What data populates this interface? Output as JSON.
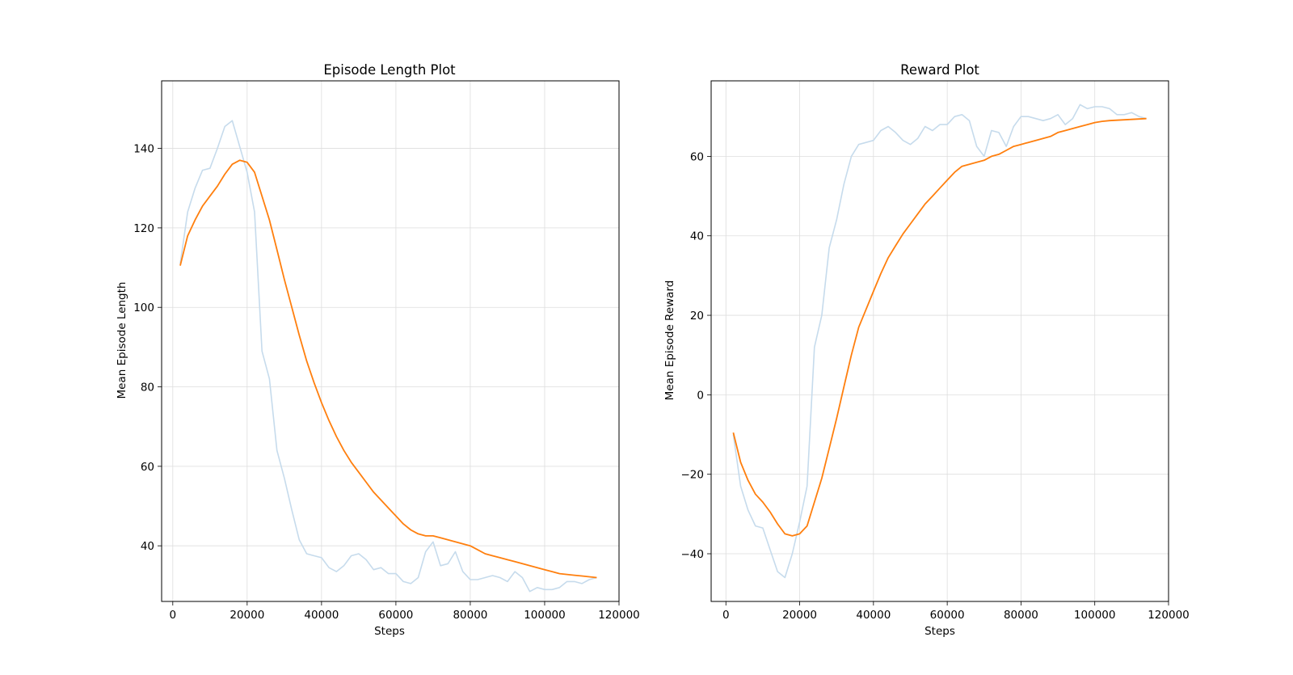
{
  "colors": {
    "raw": "#c6dbec",
    "smoothed": "#ff7f0e",
    "grid": "#dddddd"
  },
  "chart_data": [
    {
      "type": "line",
      "title": "Episode Length Plot",
      "xlabel": "Steps",
      "ylabel": "Mean Episode Length",
      "xlim": [
        -3000,
        120000
      ],
      "ylim": [
        26,
        157
      ],
      "xticks": [
        0,
        20000,
        40000,
        60000,
        80000,
        100000,
        120000
      ],
      "yticks": [
        40,
        60,
        80,
        100,
        120,
        140
      ],
      "grid": true,
      "series": [
        {
          "x": [
            2000,
            4000,
            6000,
            8000,
            10000,
            12000,
            14000,
            16000,
            18000,
            20000,
            22000,
            24000,
            26000,
            28000,
            30000,
            32000,
            34000,
            36000,
            38000,
            40000,
            42000,
            44000,
            46000,
            48000,
            50000,
            52000,
            54000,
            56000,
            58000,
            60000,
            62000,
            64000,
            66000,
            68000,
            70000,
            72000,
            74000,
            76000,
            78000,
            80000,
            82000,
            84000,
            86000,
            88000,
            90000,
            92000,
            94000,
            96000,
            98000,
            100000,
            102000,
            104000,
            106000,
            108000,
            110000,
            112000,
            114000
          ],
          "values": [
            111,
            124,
            130,
            134.5,
            135,
            140,
            145.5,
            147,
            140.5,
            134,
            124,
            89,
            82,
            64,
            57,
            49,
            41.5,
            38,
            37.5,
            37,
            34.5,
            33.5,
            35,
            37.5,
            38,
            36.5,
            34,
            34.5,
            33,
            33,
            31,
            30.5,
            32,
            38.5,
            41,
            35,
            35.5,
            38.5,
            33.5,
            31.5,
            31.5,
            32,
            32.5,
            32,
            31,
            33.5,
            32,
            28.5,
            29.5,
            29,
            29,
            29.5,
            31,
            31,
            30.5,
            31.5,
            32
          ]
        },
        {
          "x": [
            2000,
            4000,
            6000,
            8000,
            10000,
            12000,
            14000,
            16000,
            18000,
            20000,
            22000,
            24000,
            26000,
            28000,
            30000,
            32000,
            34000,
            36000,
            38000,
            40000,
            42000,
            44000,
            46000,
            48000,
            50000,
            52000,
            54000,
            56000,
            58000,
            60000,
            62000,
            64000,
            66000,
            68000,
            70000,
            72000,
            74000,
            76000,
            78000,
            80000,
            82000,
            84000,
            86000,
            88000,
            90000,
            92000,
            94000,
            96000,
            98000,
            100000,
            102000,
            104000,
            106000,
            108000,
            110000,
            112000,
            114000
          ],
          "values": [
            110.5,
            118,
            122,
            125.5,
            128,
            130.5,
            133.5,
            136,
            137,
            136.5,
            134,
            128,
            122,
            114.5,
            107,
            100,
            93,
            86.5,
            81,
            76,
            71.5,
            67.5,
            64,
            61,
            58.5,
            56,
            53.5,
            51.5,
            49.5,
            47.5,
            45.5,
            44,
            43,
            42.5,
            42.5,
            42,
            41.5,
            41,
            40.5,
            40,
            39,
            38,
            37.5,
            37,
            36.5,
            36,
            35.5,
            35,
            34.5,
            34,
            33.5,
            33,
            32.8,
            32.6,
            32.4,
            32.2,
            32
          ]
        }
      ]
    },
    {
      "type": "line",
      "title": "Reward Plot",
      "xlabel": "Steps",
      "ylabel": "Mean Episode Reward",
      "xlim": [
        -4000,
        120000
      ],
      "ylim": [
        -52,
        79
      ],
      "xticks": [
        0,
        20000,
        40000,
        60000,
        80000,
        100000,
        120000
      ],
      "yticks": [
        -40,
        -20,
        0,
        20,
        40,
        60
      ],
      "grid": true,
      "series": [
        {
          "x": [
            2000,
            4000,
            6000,
            8000,
            10000,
            12000,
            14000,
            16000,
            18000,
            20000,
            22000,
            24000,
            26000,
            28000,
            30000,
            32000,
            34000,
            36000,
            38000,
            40000,
            42000,
            44000,
            46000,
            48000,
            50000,
            52000,
            54000,
            56000,
            58000,
            60000,
            62000,
            64000,
            66000,
            68000,
            70000,
            72000,
            74000,
            76000,
            78000,
            80000,
            82000,
            84000,
            86000,
            88000,
            90000,
            92000,
            94000,
            96000,
            98000,
            100000,
            102000,
            104000,
            106000,
            108000,
            110000,
            112000,
            114000
          ],
          "values": [
            -10,
            -23,
            -29,
            -33,
            -33.5,
            -39,
            -44.5,
            -46,
            -40,
            -32,
            -23,
            12,
            20,
            37,
            44,
            53,
            60,
            63,
            63.5,
            64,
            66.5,
            67.5,
            66,
            64,
            63,
            64.5,
            67.5,
            66.5,
            68,
            68,
            70,
            70.5,
            69,
            62.5,
            60,
            66.5,
            66,
            62.5,
            67.5,
            70,
            70,
            69.5,
            69,
            69.5,
            70.5,
            68,
            69.5,
            73,
            72,
            72.5,
            72.5,
            72,
            70.5,
            70.5,
            71,
            70,
            69.5
          ]
        },
        {
          "x": [
            2000,
            4000,
            6000,
            8000,
            10000,
            12000,
            14000,
            16000,
            18000,
            20000,
            22000,
            24000,
            26000,
            28000,
            30000,
            32000,
            34000,
            36000,
            38000,
            40000,
            42000,
            44000,
            46000,
            48000,
            50000,
            52000,
            54000,
            56000,
            58000,
            60000,
            62000,
            64000,
            66000,
            68000,
            70000,
            72000,
            74000,
            76000,
            78000,
            80000,
            82000,
            84000,
            86000,
            88000,
            90000,
            92000,
            94000,
            96000,
            98000,
            100000,
            102000,
            104000,
            106000,
            108000,
            110000,
            112000,
            114000
          ],
          "values": [
            -9.5,
            -17,
            -21.5,
            -25,
            -27,
            -29.5,
            -32.5,
            -35,
            -35.5,
            -35,
            -33,
            -27,
            -21,
            -13.5,
            -6,
            2,
            10,
            17,
            21.5,
            26,
            30.5,
            34.5,
            37.5,
            40.5,
            43,
            45.5,
            48,
            50,
            52,
            54,
            56,
            57.5,
            58,
            58.5,
            59,
            60,
            60.5,
            61.5,
            62.5,
            63,
            63.5,
            64,
            64.5,
            65,
            66,
            66.5,
            67,
            67.5,
            68,
            68.5,
            68.8,
            69,
            69.1,
            69.2,
            69.3,
            69.4,
            69.5
          ]
        }
      ]
    }
  ]
}
